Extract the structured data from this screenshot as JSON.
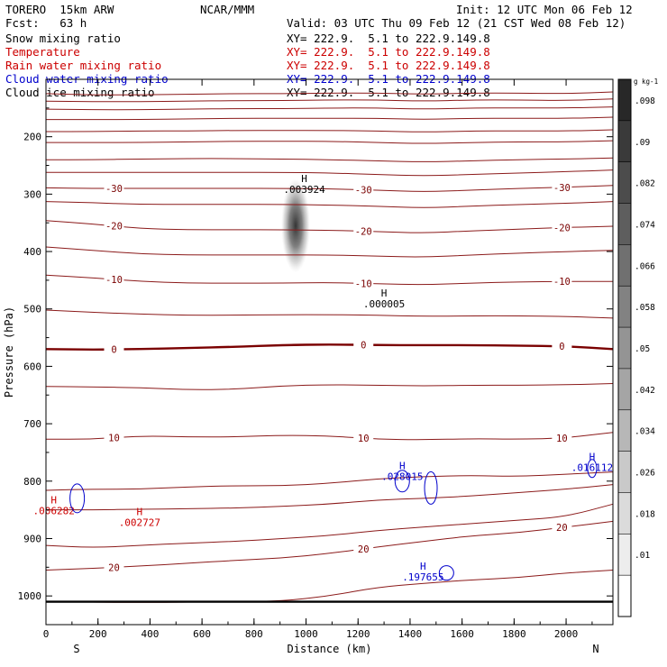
{
  "header": {
    "model": "TORERO  15km ARW",
    "org": "NCAR/MMM",
    "init": "Init: 12 UTC Mon 06 Feb 12",
    "fcst": "Fcst:   63 h",
    "valid": "Valid: 03 UTC Thu 09 Feb 12 (21 CST Wed 08 Feb 12)"
  },
  "fields": [
    {
      "label": "Snow mixing ratio",
      "xy": "XY= 222.9.  5.1 to 222.9.149.8",
      "color": "#000000"
    },
    {
      "label": "Temperature",
      "xy": "XY= 222.9.  5.1 to 222.9.149.8",
      "color": "#cc0000"
    },
    {
      "label": "Rain water mixing ratio",
      "xy": "XY= 222.9.  5.1 to 222.9.149.8",
      "color": "#cc0000"
    },
    {
      "label": "Cloud water mixing ratio",
      "xy": "XY= 222.9.  5.1 to 222.9.149.8",
      "color": "#0000cc"
    },
    {
      "label": "Cloud ice mixing ratio",
      "xy": "XY= 222.9.  5.1 to 222.9.149.8",
      "color": "#000000"
    }
  ],
  "chart_data": {
    "type": "contour cross-section",
    "xlabel": "Distance (km)",
    "ylabel": "Pressure (hPa)",
    "xlim": [
      0,
      2180
    ],
    "ylim": [
      1050,
      100
    ],
    "x_ticks": [
      "0",
      "200",
      "400",
      "600",
      "800",
      "1000",
      "1200",
      "1400",
      "1600",
      "1800",
      "2000"
    ],
    "y_ticks": [
      "200",
      "300",
      "400",
      "500",
      "600",
      "700",
      "800",
      "900",
      "1000"
    ],
    "end_labels": {
      "left": "S",
      "right": "N"
    },
    "temperature_contours": [
      {
        "level": "",
        "p": [
          125,
          127,
          127,
          126,
          125,
          125,
          124,
          124,
          126,
          124,
          124,
          125,
          122
        ]
      },
      {
        "level": "",
        "p": [
          138,
          139,
          139,
          138,
          137,
          137,
          136,
          136,
          138,
          136,
          136,
          137,
          134
        ]
      },
      {
        "level": "",
        "p": [
          152,
          153,
          153,
          152,
          151,
          151,
          150,
          150,
          152,
          150,
          150,
          150,
          148
        ]
      },
      {
        "level": "",
        "p": [
          170,
          170,
          170,
          169,
          168,
          168,
          168,
          168,
          170,
          168,
          168,
          168,
          166
        ]
      },
      {
        "level": "",
        "p": [
          191,
          191,
          190,
          190,
          189,
          189,
          189,
          190,
          192,
          190,
          190,
          190,
          188
        ]
      },
      {
        "level": "",
        "p": [
          210,
          210,
          210,
          209,
          208,
          208,
          208,
          210,
          212,
          210,
          209,
          209,
          207
        ]
      },
      {
        "level": "",
        "p": [
          240,
          240,
          239,
          238,
          238,
          239,
          240,
          242,
          244,
          242,
          240,
          239,
          237
        ]
      },
      {
        "level": "",
        "p": [
          262,
          262,
          262,
          262,
          262,
          262,
          263,
          266,
          268,
          266,
          263,
          261,
          258
        ]
      },
      {
        "level": "-30",
        "p": [
          289,
          290,
          290,
          290,
          290,
          290,
          291,
          293,
          296,
          293,
          290,
          288,
          285
        ]
      },
      {
        "level": "",
        "p": [
          313,
          315,
          318,
          318,
          318,
          318,
          319,
          321,
          324,
          321,
          318,
          316,
          313
        ]
      },
      {
        "level": "-20",
        "p": [
          346,
          352,
          360,
          362,
          362,
          362,
          363,
          365,
          368,
          364,
          361,
          358,
          356
        ]
      },
      {
        "level": "",
        "p": [
          392,
          398,
          404,
          406,
          406,
          406,
          406,
          408,
          410,
          406,
          403,
          400,
          398
        ]
      },
      {
        "level": "-10",
        "p": [
          441,
          446,
          452,
          455,
          455,
          455,
          454,
          456,
          458,
          455,
          453,
          452,
          452
        ]
      },
      {
        "level": "",
        "p": [
          502,
          506,
          509,
          511,
          511,
          510,
          510,
          511,
          513,
          512,
          512,
          513,
          516
        ]
      },
      {
        "level": "0",
        "p": [
          570,
          571,
          570,
          568,
          566,
          563,
          562,
          563,
          563,
          563,
          564,
          565,
          570
        ]
      },
      {
        "level": "",
        "p": [
          635,
          636,
          637,
          641,
          640,
          634,
          632,
          633,
          634,
          633,
          633,
          632,
          630
        ]
      },
      {
        "level": "10",
        "p": [
          727,
          727,
          721,
          723,
          723,
          720,
          721,
          727,
          728,
          726,
          727,
          725,
          715
        ]
      },
      {
        "level": "",
        "p": [
          816,
          814,
          814,
          810,
          808,
          808,
          804,
          796,
          792,
          790,
          792,
          788,
          784
        ]
      },
      {
        "level": "",
        "p": [
          850,
          850,
          849,
          848,
          847,
          844,
          840,
          833,
          830,
          826,
          820,
          814,
          806
        ]
      },
      {
        "level": "",
        "p": [
          912,
          916,
          912,
          908,
          905,
          900,
          895,
          886,
          880,
          874,
          868,
          862,
          840
        ]
      },
      {
        "level": "20",
        "p": [
          955,
          952,
          948,
          943,
          938,
          934,
          926,
          915,
          905,
          895,
          890,
          880,
          870
        ]
      },
      {
        "level": "",
        "p": [
          1010,
          1011,
          1011,
          1011,
          1010,
          1009,
          1000,
          985,
          978,
          972,
          968,
          960,
          955
        ]
      }
    ],
    "snow_maximum": {
      "label": "H",
      "value": ".003924",
      "x_km": 1000,
      "p": 295
    },
    "other_maxima": [
      {
        "label": "H",
        "value": ".000005",
        "x_km": 1300,
        "p": 497,
        "color": "#000000"
      },
      {
        "label": "H",
        "value": ".028015",
        "x_km": 1370,
        "p": 798,
        "color": "#0000cc"
      },
      {
        "label": "H",
        "value": ".016112",
        "x_km": 2100,
        "p": 782,
        "color": "#0000cc"
      },
      {
        "label": "H",
        "value": ".197655",
        "x_km": 1450,
        "p": 973,
        "color": "#0000cc"
      },
      {
        "label": "H",
        "value": ".006282",
        "x_km": 30,
        "p": 858,
        "color": "#cc0000"
      },
      {
        "label": "H",
        "value": ".002727",
        "x_km": 360,
        "p": 878,
        "color": "#cc0000"
      }
    ],
    "colorbar": {
      "unit": "g kg-1",
      "labels": [
        ".098",
        ".09",
        ".082",
        ".074",
        ".066",
        ".058",
        ".05",
        ".042",
        ".034",
        ".026",
        ".018",
        ".01"
      ]
    }
  }
}
